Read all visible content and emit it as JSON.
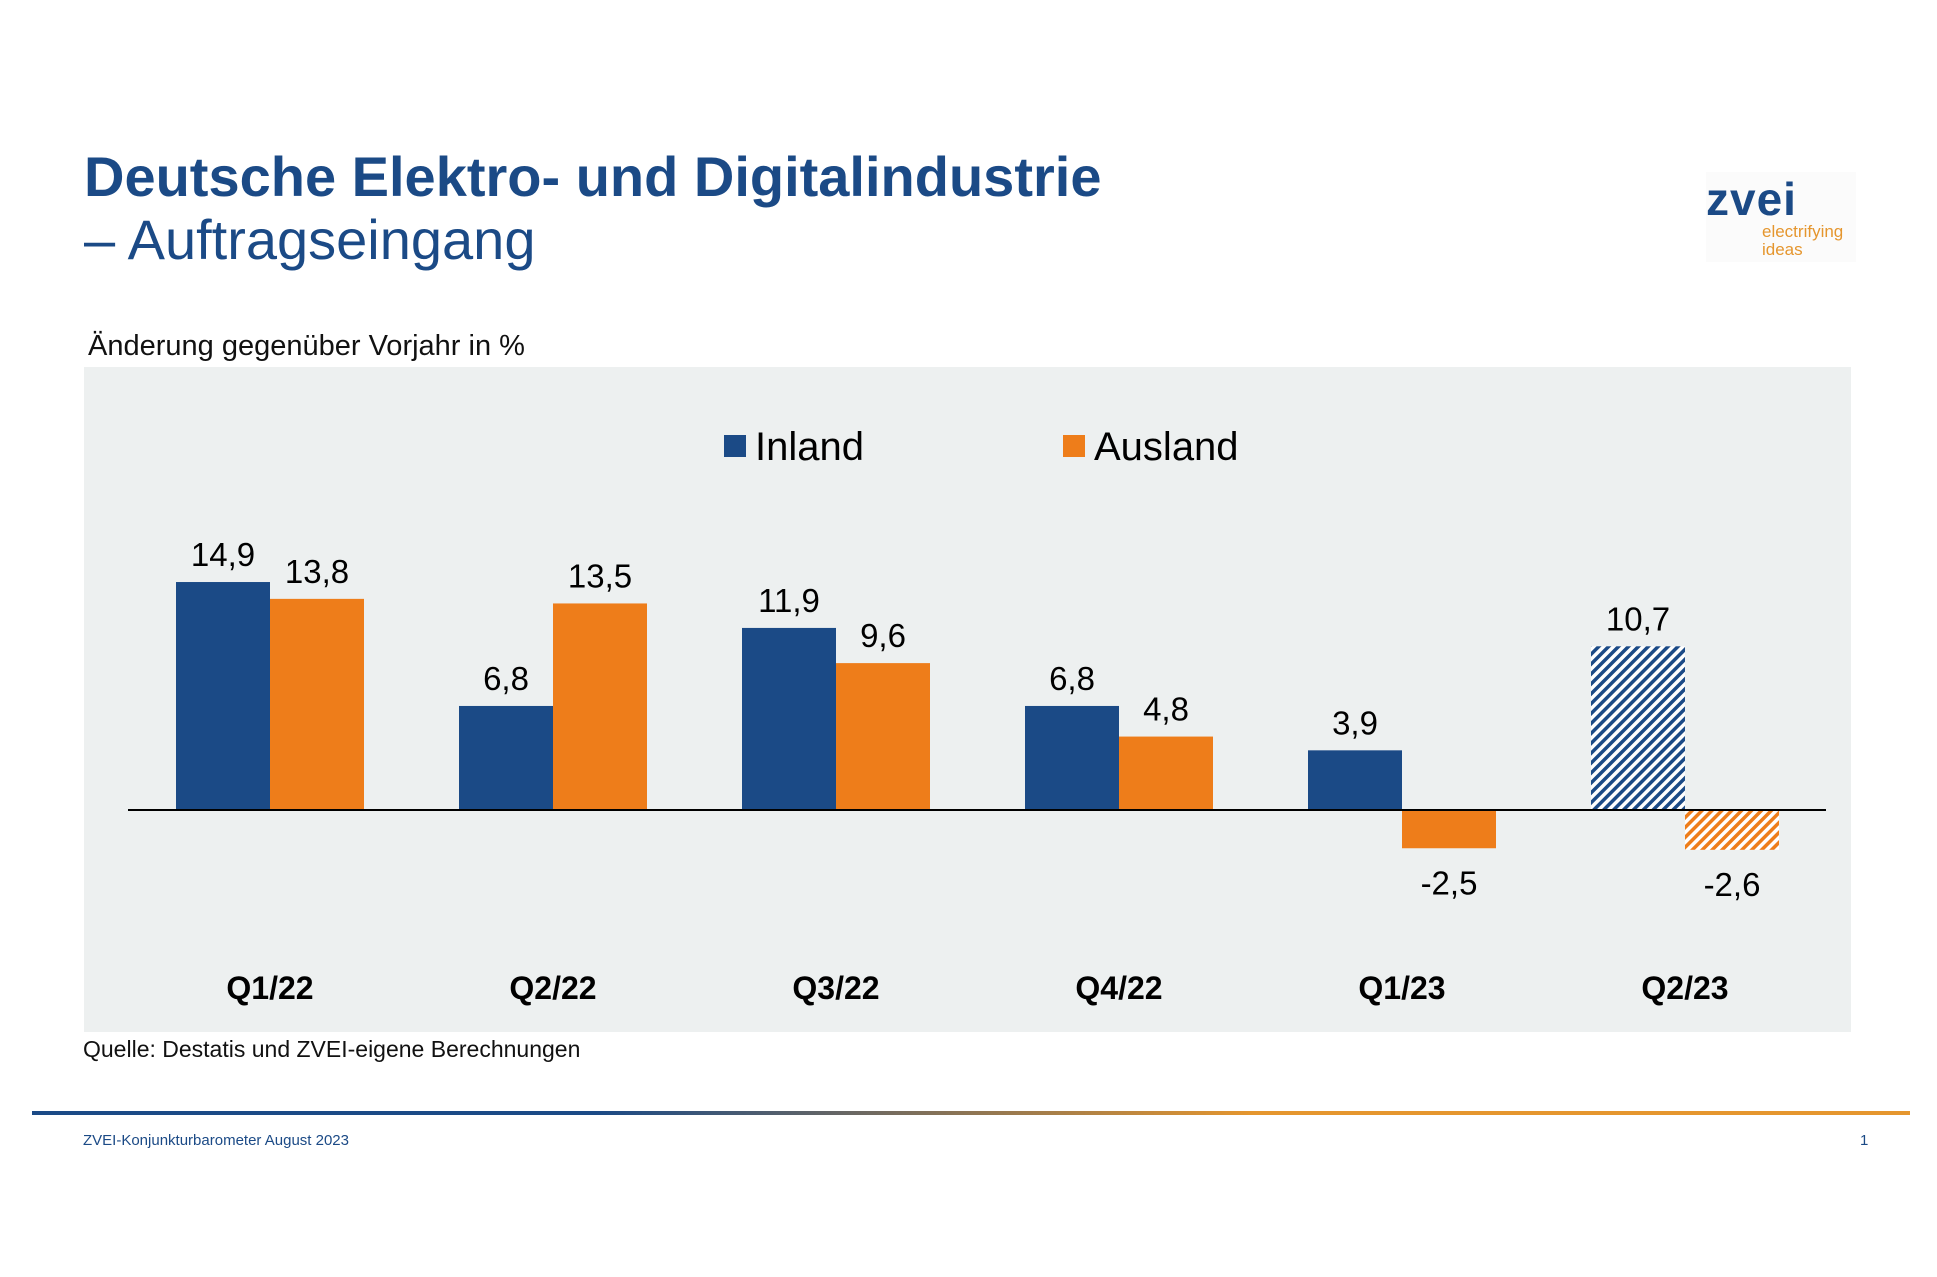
{
  "header": {
    "title_line1": "Deutsche Elektro- und Digitalindustrie",
    "title_line2": "– Auftragseingang"
  },
  "logo": {
    "word": "zvei",
    "tagline_1": "electrifying",
    "tagline_2": "ideas"
  },
  "subtitle": "Änderung gegenüber Vorjahr in %",
  "source": "Quelle: Destatis und ZVEI-eigene Berechnungen",
  "footer": {
    "left": "ZVEI-Konjunkturbarometer August 2023",
    "page": "1"
  },
  "colors": {
    "inland": "#1b4a86",
    "ausland": "#ee7d1a",
    "panel": "#edf0f0"
  },
  "chart_data": {
    "type": "bar",
    "categories": [
      "Q1/22",
      "Q2/22",
      "Q3/22",
      "Q4/22",
      "Q1/23",
      "Q2/23"
    ],
    "series": [
      {
        "name": "Inland",
        "values": [
          14.9,
          6.8,
          11.9,
          6.8,
          3.9,
          10.7
        ],
        "labels": [
          "14,9",
          "6,8",
          "11,9",
          "6,8",
          "3,9",
          "10,7"
        ]
      },
      {
        "name": "Ausland",
        "values": [
          13.8,
          13.5,
          9.6,
          4.8,
          -2.5,
          -2.6
        ],
        "labels": [
          "13,8",
          "13,5",
          "9,6",
          "4,8",
          "-2,5",
          "-2,6"
        ]
      }
    ],
    "hatched_categories": [
      "Q2/23"
    ],
    "legend_position": "top-center",
    "grid": false,
    "ylim": [
      -8,
      20
    ]
  }
}
